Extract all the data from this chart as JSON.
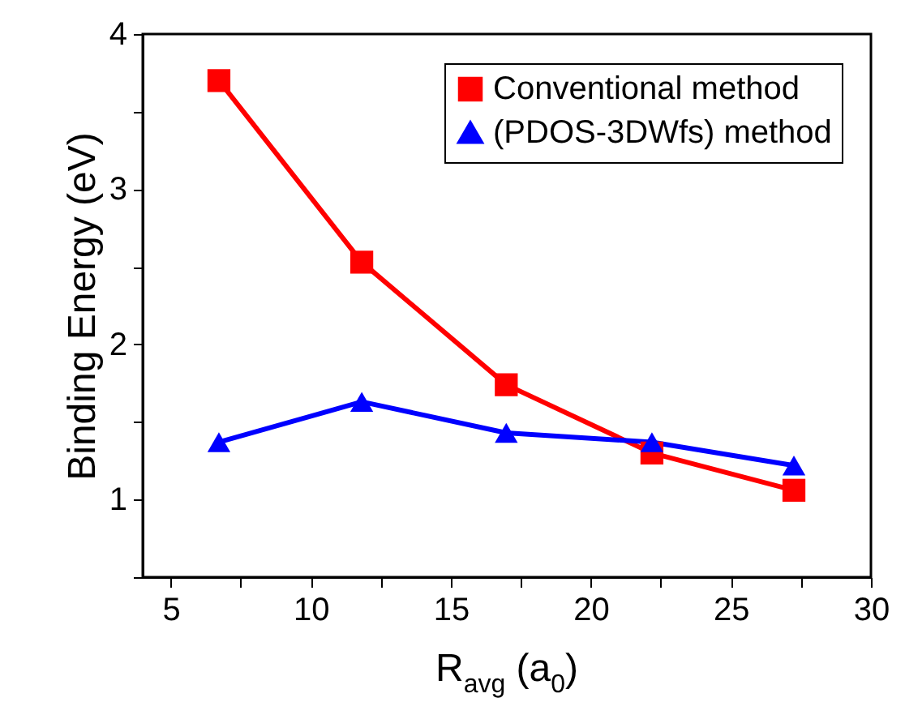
{
  "chart_data": {
    "type": "line",
    "xlabel": "R$_{avg}$ (a$_{0}$)",
    "ylabel": "Binding Energy (eV)",
    "x": [
      6.72,
      11.82,
      16.98,
      22.18,
      27.25
    ],
    "series": [
      {
        "name": "Conventional method",
        "color": "#ff0000",
        "marker": "square",
        "values": [
          3.7,
          2.53,
          1.74,
          1.3,
          1.06
        ]
      },
      {
        "name": "(PDOS-3DWfs) method",
        "color": "#0000ff",
        "marker": "triangle",
        "values": [
          1.37,
          1.63,
          1.43,
          1.37,
          1.22
        ]
      }
    ],
    "xlim": [
      4,
      30
    ],
    "ylim": [
      0.5,
      4
    ],
    "xticks": [
      5,
      {
        "value": 7.5,
        "label": null
      },
      10,
      {
        "value": 12.5,
        "label": null
      },
      15,
      {
        "value": 17.5,
        "label": null
      },
      20,
      {
        "value": 22.5,
        "label": null
      },
      25,
      {
        "value": 27.5,
        "label": null
      },
      30
    ],
    "yticks": [
      {
        "value": 0.5,
        "label": null
      },
      1,
      {
        "value": 1.5,
        "label": null
      },
      2,
      {
        "value": 2.5,
        "label": null
      },
      3,
      {
        "value": 3.5,
        "label": null
      },
      4
    ],
    "grid": false,
    "legend": "top right",
    "line_style": "solid"
  }
}
